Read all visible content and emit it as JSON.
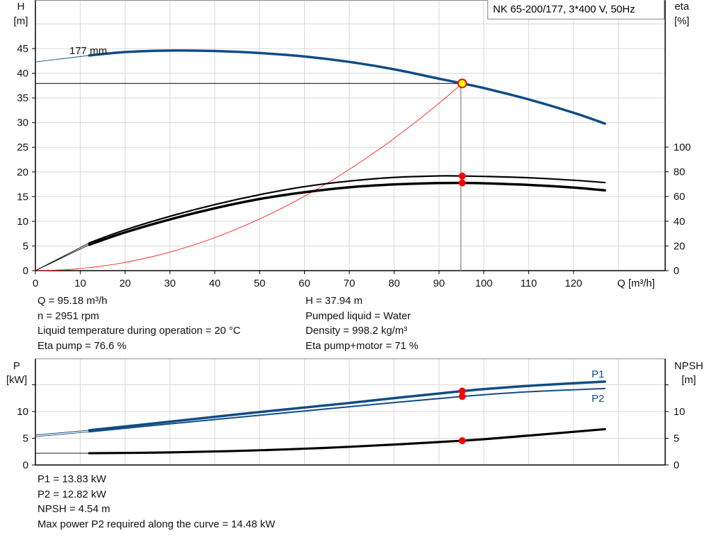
{
  "title_box": "NK 65-200/177, 3*400 V, 50Hz",
  "colors": {
    "head": "#0f4c86",
    "power": "#0f4c86",
    "eta": "#000000",
    "npsh": "#000000",
    "system": "#ff0000",
    "marker": "#ff0000",
    "op_point_fill": "#ffff00",
    "grid": "#d8d8d8"
  },
  "chart_data": [
    {
      "type": "line",
      "title": "",
      "xlabel": "Q [m³/h]",
      "ylabel": "H\n[m]",
      "ylabel_lines": [
        "H",
        "[m]"
      ],
      "y2label_lines": [
        "eta",
        "[%]"
      ],
      "xlim": [
        0,
        140
      ],
      "ylim": [
        0,
        55
      ],
      "y2lim": [
        0,
        155
      ],
      "xticks": [
        0,
        10,
        20,
        30,
        40,
        50,
        60,
        70,
        80,
        90,
        100,
        110,
        120
      ],
      "yticks": [
        0,
        5,
        10,
        15,
        20,
        25,
        30,
        35,
        40,
        45
      ],
      "y2ticks": [
        0,
        20,
        40,
        60,
        80,
        100
      ],
      "grid": true,
      "curve_label": "177 mm",
      "series": [
        {
          "key": "head",
          "axis": "y",
          "x": [
            12,
            20,
            30,
            40,
            50,
            60,
            70,
            80,
            90,
            95.18,
            100,
            110,
            120,
            127
          ],
          "y": [
            43.6,
            44.3,
            44.6,
            44.5,
            44.1,
            43.4,
            42.3,
            40.8,
            38.9,
            37.94,
            37.0,
            34.7,
            32.0,
            29.8
          ],
          "ext_x": [
            0,
            12
          ],
          "ext_y": [
            42.3,
            43.6
          ]
        },
        {
          "key": "eta_pump",
          "axis": "y2",
          "x": [
            12,
            20,
            30,
            40,
            50,
            60,
            70,
            80,
            90,
            95.18,
            100,
            110,
            120,
            127
          ],
          "y": [
            22.5,
            33,
            44,
            53.5,
            61.5,
            68,
            72.5,
            75.5,
            76.7,
            76.6,
            76.3,
            75.2,
            73.2,
            71.3
          ],
          "ext_x": [
            0,
            12
          ],
          "ext_y": [
            0,
            22.5
          ]
        },
        {
          "key": "eta_pump_motor",
          "axis": "y2",
          "x": [
            12,
            20,
            30,
            40,
            50,
            60,
            70,
            80,
            90,
            95.18,
            100,
            110,
            120,
            127
          ],
          "y": [
            21,
            31,
            41.5,
            50.5,
            58,
            63.5,
            67.5,
            69.8,
            70.9,
            71,
            70.7,
            69.4,
            67.3,
            65
          ],
          "ext_x": [
            0,
            12
          ],
          "ext_y": [
            0,
            21
          ]
        },
        {
          "key": "system",
          "axis": "y",
          "k": 0.004188,
          "x_end": 95.18
        }
      ],
      "operating_point": {
        "Q": 95.18,
        "H": 37.94,
        "eta_pump": 76.6,
        "eta_pump_motor": 71
      }
    },
    {
      "type": "line",
      "ylabel_lines": [
        "P",
        "[kW]"
      ],
      "y2label_lines": [
        "NPSH",
        "[m]"
      ],
      "xlim": [
        0,
        140
      ],
      "ylim": [
        0,
        20
      ],
      "yticks": [
        0,
        5,
        10,
        15
      ],
      "yticklabels": [
        "0",
        "5",
        "10",
        ""
      ],
      "grid": true,
      "series": [
        {
          "key": "P1",
          "name": "P1",
          "x": [
            12,
            30,
            50,
            70,
            95.18,
            110,
            127
          ],
          "y": [
            6.5,
            8.1,
            9.9,
            11.6,
            13.83,
            14.8,
            15.6
          ],
          "ext_x": [
            0,
            12
          ],
          "ext_y": [
            5.6,
            6.5
          ]
        },
        {
          "key": "P2",
          "name": "P2",
          "x": [
            12,
            30,
            50,
            70,
            95.18,
            110,
            127
          ],
          "y": [
            6.2,
            7.7,
            9.3,
            10.9,
            12.82,
            13.7,
            14.3
          ],
          "ext_x": [
            0,
            12
          ],
          "ext_y": [
            5.3,
            6.2
          ]
        },
        {
          "key": "NPSH",
          "x": [
            12,
            30,
            50,
            70,
            95.18,
            110,
            127
          ],
          "y": [
            2.2,
            2.35,
            2.75,
            3.4,
            4.54,
            5.5,
            6.7
          ],
          "ext_x": [
            0,
            12
          ],
          "ext_y": [
            2.2,
            2.2
          ]
        }
      ],
      "operating_point": {
        "Q": 95.18,
        "P1": 13.83,
        "P2": 12.82,
        "NPSH": 4.54
      }
    }
  ],
  "info_top_left": [
    "Q = 95.18 m³/h",
    "n = 2951 rpm",
    "Liquid temperature during operation = 20 °C",
    "Eta pump = 76.6 %"
  ],
  "info_top_right": [
    "H = 37.94 m",
    "Pumped liquid = Water",
    "Density = 998.2 kg/m³",
    "Eta pump+motor = 71 %"
  ],
  "info_bottom": [
    "P1 = 13.83 kW",
    "P2 = 12.82 kW",
    "NPSH = 4.54 m",
    "Max power P2 required along the curve = 14.48 kW"
  ]
}
